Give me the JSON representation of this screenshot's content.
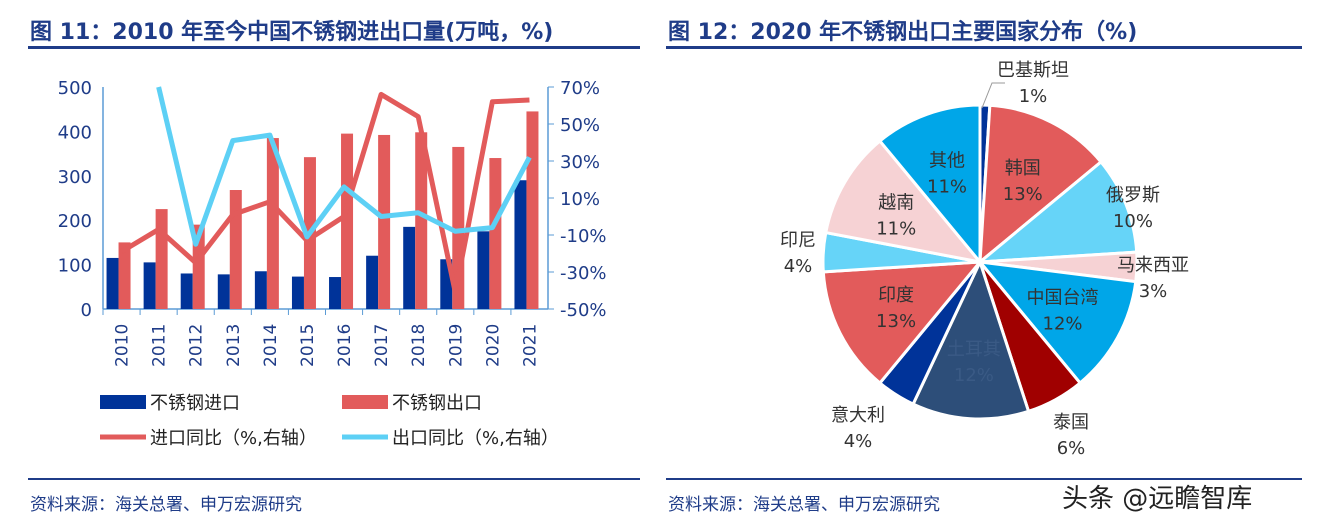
{
  "left": {
    "title": "图 11：2010 年至今中国不锈钢进出口量(万吨，%)",
    "source": "资料来源：海关总署、申万宏源研究"
  },
  "right": {
    "title": "图 12：2020 年不锈钢出口主要国家分布（%)",
    "source": "资料来源：海关总署、申万宏源研究"
  },
  "watermark": "头条 @远瞻智库",
  "chart_data": [
    {
      "type": "bar+line",
      "categories": [
        "2010",
        "2011",
        "2012",
        "2013",
        "2014",
        "2015",
        "2016",
        "2017",
        "2018",
        "2019",
        "2020",
        "2021"
      ],
      "y_left": {
        "lim": [
          0,
          500
        ],
        "ticks": [
          "0",
          "100",
          "200",
          "300",
          "400",
          "500"
        ]
      },
      "y_right": {
        "lim": [
          -50,
          70
        ],
        "ticks": [
          "-50%",
          "-30%",
          "-10%",
          "10%",
          "30%",
          "50%",
          "70%"
        ]
      },
      "series": [
        {
          "name": "不锈钢进口",
          "type": "bar",
          "axis": "left",
          "color": "#003399",
          "values": [
            115,
            105,
            80,
            78,
            85,
            73,
            72,
            120,
            185,
            112,
            175,
            290
          ]
        },
        {
          "name": "不锈钢出口",
          "type": "bar",
          "axis": "left",
          "color": "#e25b5b",
          "values": [
            150,
            225,
            190,
            268,
            385,
            342,
            395,
            392,
            398,
            365,
            340,
            445
          ]
        },
        {
          "name": "进口同比（%,右轴）",
          "type": "line",
          "axis": "right",
          "color": "#e25b5b",
          "values": [
            -19,
            -7,
            -25,
            1,
            8,
            -13,
            0,
            66,
            54,
            -41,
            62,
            63
          ]
        },
        {
          "name": "出口同比（%,右轴）",
          "type": "line",
          "axis": "right",
          "color": "#5dd0f5",
          "values": [
            null,
            70,
            -15,
            41,
            44,
            -11,
            16,
            0,
            2,
            -8,
            -6,
            32
          ]
        }
      ],
      "legend": "bottom"
    },
    {
      "type": "pie",
      "slices": [
        {
          "label": "巴基斯坦",
          "value": 1,
          "text": "1%",
          "color": "#003399"
        },
        {
          "label": "韩国",
          "value": 13,
          "text": "13%",
          "color": "#e25b5b"
        },
        {
          "label": "俄罗斯",
          "value": 10,
          "text": "10%",
          "color": "#66d4f8"
        },
        {
          "label": "马来西亚",
          "value": 3,
          "text": "3%",
          "color": "#f6d2d4"
        },
        {
          "label": "中国台湾",
          "value": 12,
          "text": "12%",
          "color": "#00a6e8"
        },
        {
          "label": "泰国",
          "value": 6,
          "text": "6%",
          "color": "#a00000"
        },
        {
          "label": "土耳其",
          "value": 12,
          "text": "12%",
          "color": "#2d4e79"
        },
        {
          "label": "意大利",
          "value": 4,
          "text": "4%",
          "color": "#003399"
        },
        {
          "label": "印度",
          "value": 13,
          "text": "13%",
          "color": "#e25b5b"
        },
        {
          "label": "印尼",
          "value": 4,
          "text": "4%",
          "color": "#66d4f8"
        },
        {
          "label": "越南",
          "value": 11,
          "text": "11%",
          "color": "#f6d2d4"
        },
        {
          "label": "其他",
          "value": 11,
          "text": "11%",
          "color": "#00a6e8"
        }
      ]
    }
  ]
}
